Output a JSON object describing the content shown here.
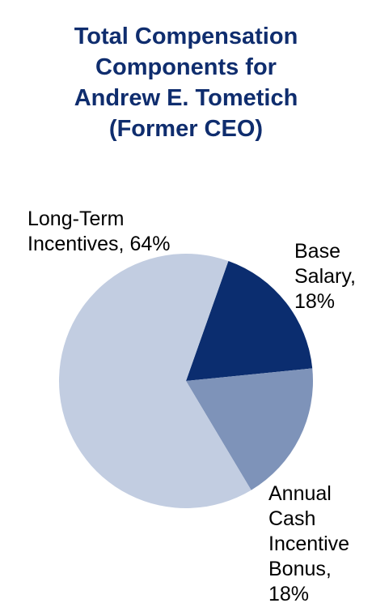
{
  "chart_data": {
    "type": "pie",
    "title_lines": [
      "Total Compensation",
      "Components for",
      "Andrew E. Tometich",
      "(Former CEO)"
    ],
    "slices": [
      {
        "name": "Base Salary",
        "value": 18,
        "color": "#0b2d6f"
      },
      {
        "name": "Annual Cash Incentive Bonus",
        "value": 18,
        "color": "#7e93b9"
      },
      {
        "name": "Long-Term Incentives",
        "value": 64,
        "color": "#c2cde1"
      }
    ],
    "labels": {
      "long_term": [
        "Long-Term",
        "Incentives, 64%"
      ],
      "base": [
        "Base",
        "Salary,",
        "18%"
      ],
      "annual": [
        "Annual",
        "Cash",
        "Incentive",
        "Bonus,",
        "18%"
      ]
    },
    "legend": "none"
  }
}
